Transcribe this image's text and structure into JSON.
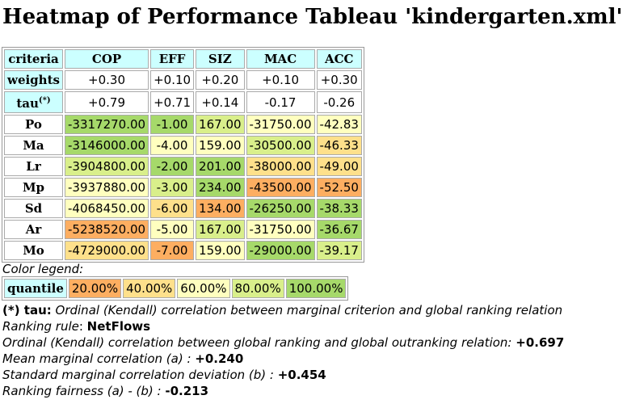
{
  "title": "Heatmap of Performance Tableau 'kindergarten.xml'",
  "table": {
    "corner": "criteria",
    "criteria": [
      "COP",
      "EFF",
      "SIZ",
      "MAC",
      "ACC"
    ],
    "weights_label": "weights",
    "weights": [
      "+0.30",
      "+0.10",
      "+0.20",
      "+0.10",
      "+0.30"
    ],
    "tau_label": "tau",
    "tau_mark": "(*)",
    "tau": [
      "+0.79",
      "+0.71",
      "+0.14",
      "-0.17",
      "-0.26"
    ],
    "rows": [
      {
        "name": "Po",
        "values": [
          "-3317270.00",
          "-1.00",
          "167.00",
          "-31750.00",
          "-42.83"
        ],
        "quantiles": [
          5,
          5,
          4,
          3,
          3
        ]
      },
      {
        "name": "Ma",
        "values": [
          "-3146000.00",
          "-4.00",
          "159.00",
          "-30500.00",
          "-46.33"
        ],
        "quantiles": [
          5,
          3,
          3,
          4,
          2
        ]
      },
      {
        "name": "Lr",
        "values": [
          "-3904800.00",
          "-2.00",
          "201.00",
          "-38000.00",
          "-49.00"
        ],
        "quantiles": [
          4,
          5,
          5,
          2,
          2
        ]
      },
      {
        "name": "Mp",
        "values": [
          "-3937880.00",
          "-3.00",
          "234.00",
          "-43500.00",
          "-52.50"
        ],
        "quantiles": [
          3,
          4,
          5,
          1,
          1
        ]
      },
      {
        "name": "Sd",
        "values": [
          "-4068450.00",
          "-6.00",
          "134.00",
          "-26250.00",
          "-38.33"
        ],
        "quantiles": [
          3,
          2,
          1,
          5,
          5
        ]
      },
      {
        "name": "Ar",
        "values": [
          "-5238520.00",
          "-5.00",
          "167.00",
          "-31750.00",
          "-36.67"
        ],
        "quantiles": [
          1,
          3,
          4,
          3,
          5
        ]
      },
      {
        "name": "Mo",
        "values": [
          "-4729000.00",
          "-7.00",
          "159.00",
          "-29000.00",
          "-39.17"
        ],
        "quantiles": [
          2,
          1,
          3,
          5,
          4
        ]
      }
    ]
  },
  "legend": {
    "caption": "Color legend:",
    "label": "quantile",
    "items": [
      {
        "label": "20.00%",
        "color": "#fdae61"
      },
      {
        "label": "40.00%",
        "color": "#fee08b"
      },
      {
        "label": "60.00%",
        "color": "#ffffbf"
      },
      {
        "label": "80.00%",
        "color": "#d9ef8b"
      },
      {
        "label": "100.00%",
        "color": "#a6d96a"
      }
    ]
  },
  "notes": {
    "tau_note_key": "(*) tau:",
    "tau_note_text": " Ordinal (Kendall) correlation between marginal criterion and global ranking relation",
    "ranking_rule_label": "Ranking rule",
    "ranking_rule_value": "NetFlows",
    "ordinal_corr_label": "Ordinal (Kendall) correlation between global ranking and global outranking relation: ",
    "ordinal_corr_value": "+0.697",
    "mean_label": "Mean marginal correlation (a) : ",
    "mean_value": "+0.240",
    "std_label": "Standard marginal correlation deviation (b) : ",
    "std_value": "+0.454",
    "fairness_label": "Ranking fairness (a) - (b) : ",
    "fairness_value": "-0.213"
  }
}
